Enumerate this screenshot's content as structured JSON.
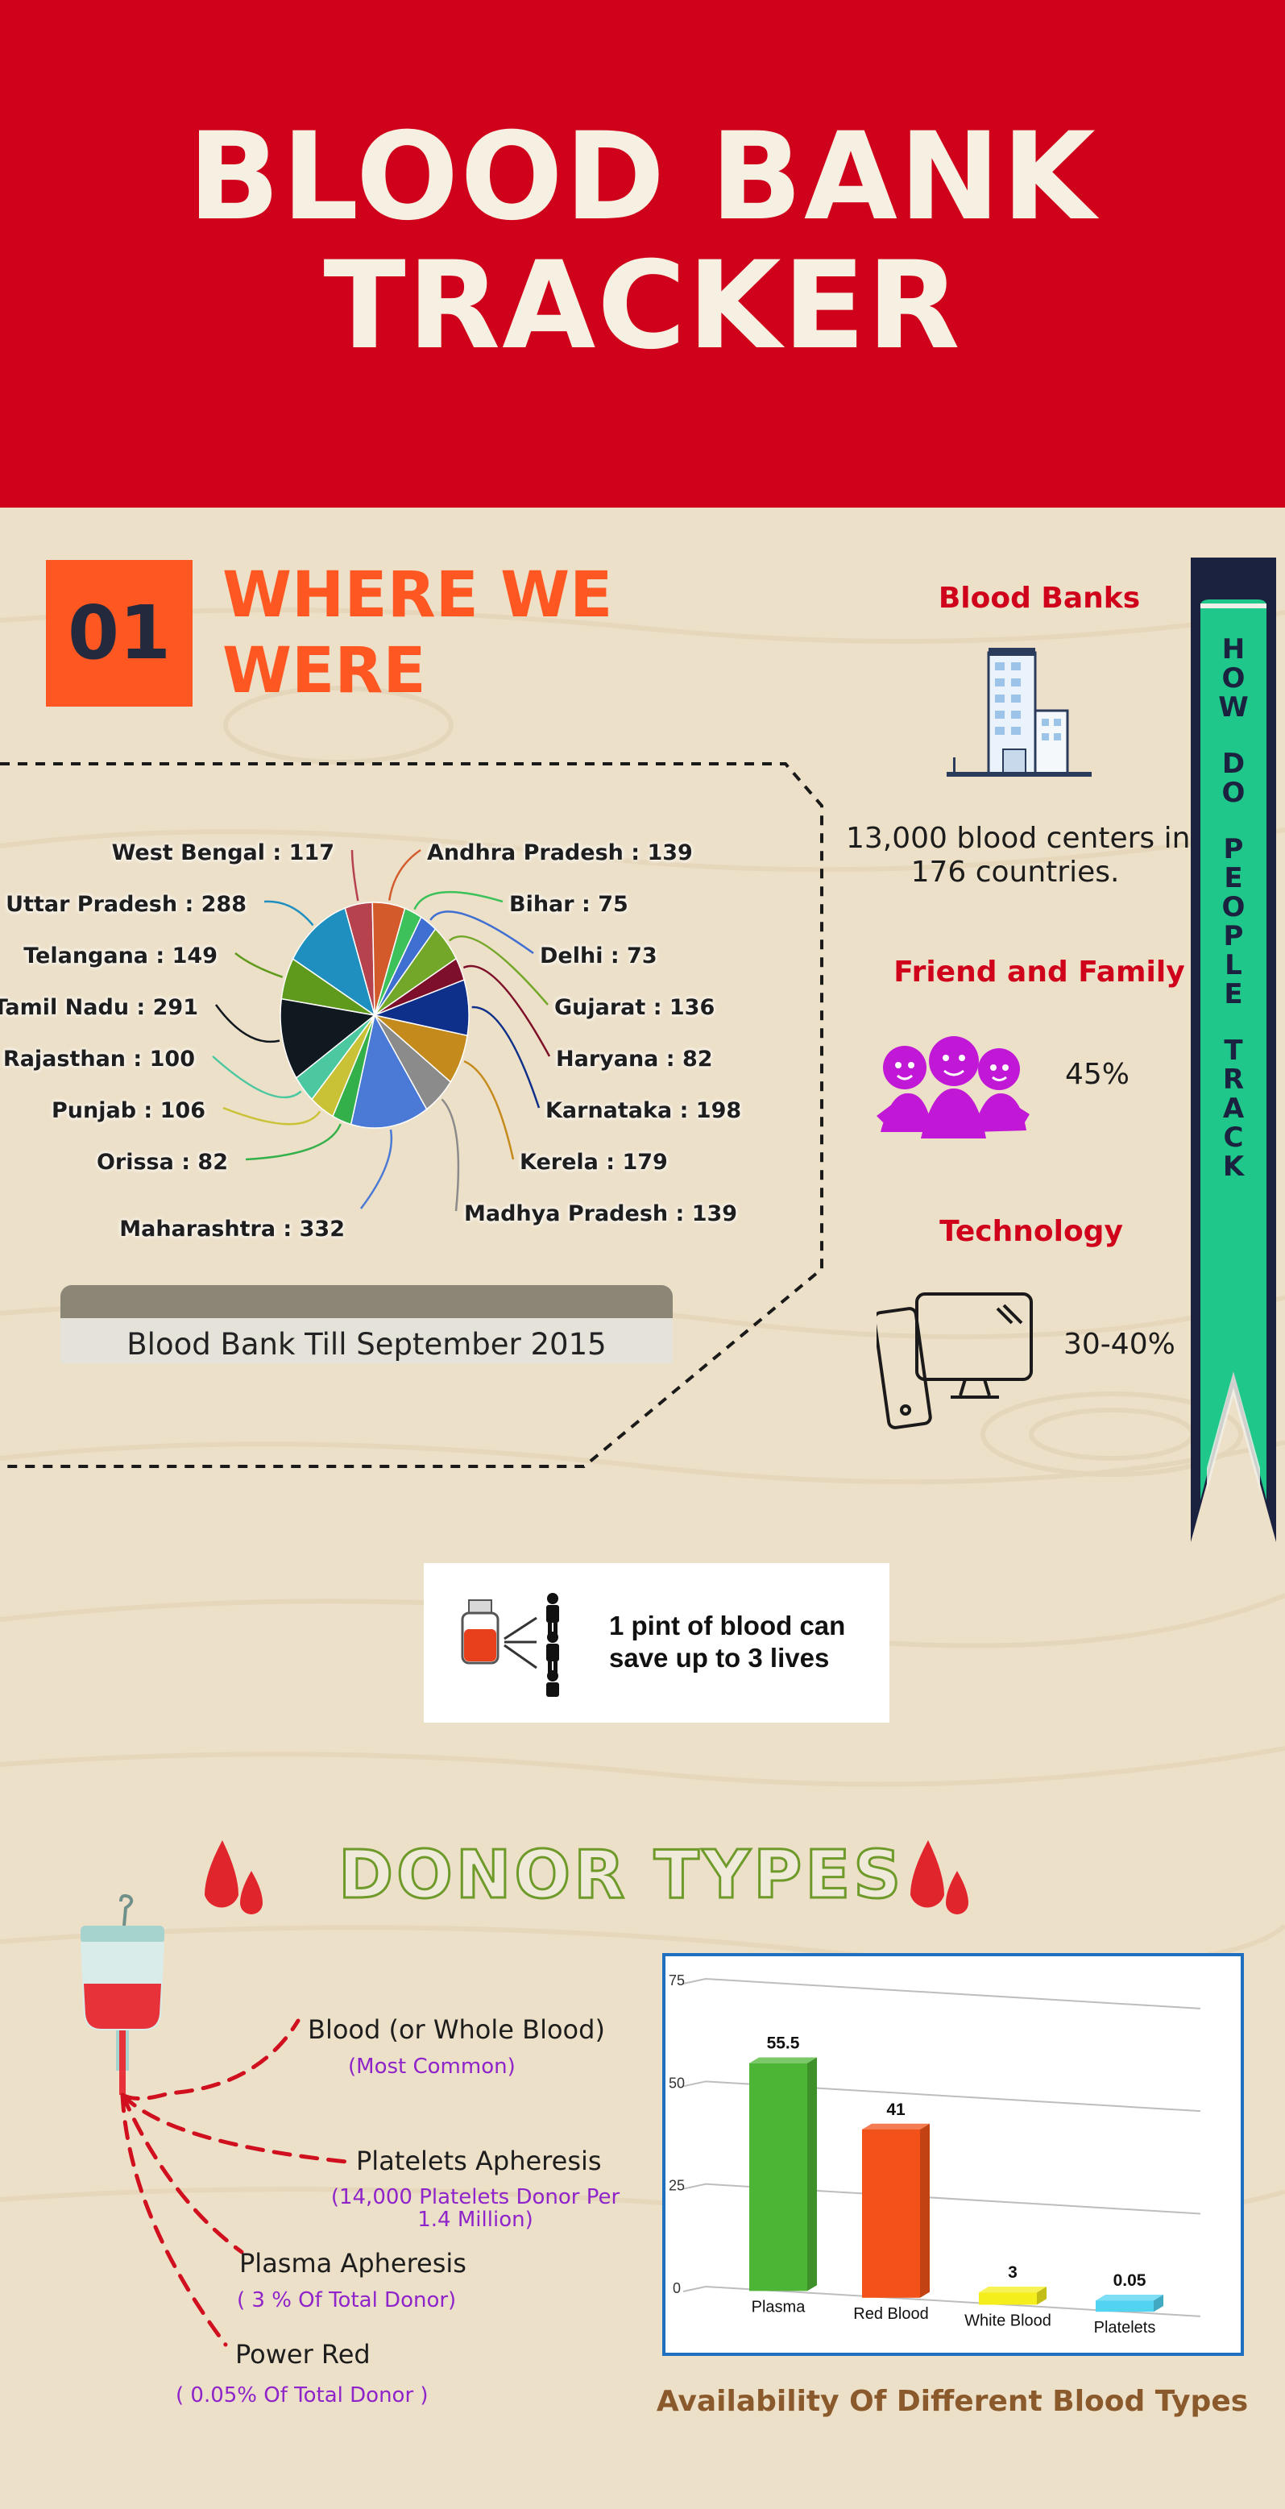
{
  "header": {
    "title_line1": "BLOOD BANK",
    "title_line2": "TRACKER"
  },
  "section1": {
    "number": "01",
    "title_line1": "WHERE WE",
    "title_line2": "WERE"
  },
  "pie_caption": "Blood Bank Till September 2015",
  "side": {
    "ribbon_words": [
      "HOW",
      "DO",
      "PEOPLE",
      "TRACK"
    ],
    "blood_banks": {
      "heading": "Blood Banks",
      "line1": "13,000  blood centers in",
      "line2": "176 countries."
    },
    "friends": {
      "heading": "Friend and Family",
      "value": "45%"
    },
    "technology": {
      "heading": "Technology",
      "value": "30-40%"
    }
  },
  "pint": {
    "line1": "1 pint of blood can",
    "line2": "save up to 3 lives"
  },
  "donor": {
    "title": "DONOR TYPES",
    "types": [
      {
        "name": "Blood (or Whole Blood)",
        "note": "(Most Common)"
      },
      {
        "name": "Platelets Apheresis",
        "note_line1": "(14,000 Platelets Donor Per",
        "note_line2": "1.4 Million)"
      },
      {
        "name": "Plasma Apheresis",
        "note": "( 3 % Of Total Donor)"
      },
      {
        "name": "Power Red",
        "note": "( 0.05% Of Total Donor )"
      }
    ]
  },
  "colors": {
    "header_red": "#d0021b",
    "accent_orange": "#ff5722",
    "ribbon_green": "#1fc88a",
    "ribbon_navy": "#1b2240",
    "note_purple": "#8e24c9",
    "chart_border": "#1e6fc0"
  },
  "chart_data": [
    {
      "type": "pie",
      "title": "Blood Bank Till September 2015",
      "slices": [
        {
          "label": "West Bengal : 117",
          "value": 117,
          "color": "#b5424d"
        },
        {
          "label": "Andhra Pradesh : 139",
          "value": 139,
          "color": "#d35a2b"
        },
        {
          "label": "Bihar : 75",
          "value": 75,
          "color": "#3cc15b"
        },
        {
          "label": "Delhi : 73",
          "value": 73,
          "color": "#3f6fd0"
        },
        {
          "label": "Gujarat : 136",
          "value": 136,
          "color": "#73a72a"
        },
        {
          "label": "Haryana : 82",
          "value": 82,
          "color": "#7e0f2a"
        },
        {
          "label": "Karnataka : 198",
          "value": 198,
          "color": "#0e2f8a"
        },
        {
          "label": "Kerela : 179",
          "value": 179,
          "color": "#c48a1c"
        },
        {
          "label": "Madhya Pradesh : 139",
          "value": 139,
          "color": "#8b8b8b"
        },
        {
          "label": "Maharashtra : 332",
          "value": 332,
          "color": "#4a7ad6"
        },
        {
          "label": "Orissa : 82",
          "value": 82,
          "color": "#34b04a"
        },
        {
          "label": "Punjab : 106",
          "value": 106,
          "color": "#c9c236"
        },
        {
          "label": "Rajasthan : 100",
          "value": 100,
          "color": "#4cc8a0"
        },
        {
          "label": "Tamil Nadu : 291",
          "value": 291,
          "color": "#101820"
        },
        {
          "label": "Telangana : 149",
          "value": 149,
          "color": "#5f9a1d"
        },
        {
          "label": "Uttar Pradesh : 288",
          "value": 288,
          "color": "#1f8fbf"
        }
      ]
    },
    {
      "type": "bar",
      "title": "Availability Of Different Blood Types",
      "ylabel": "%",
      "ylim": [
        0,
        75
      ],
      "yticks": [
        0,
        25,
        50,
        75
      ],
      "categories": [
        "Plasma",
        "Red Blood",
        "White Blood",
        "Platelets"
      ],
      "values": [
        55.5,
        41,
        3,
        0.05
      ],
      "value_labels": [
        "55.5",
        "41",
        "3",
        "0.05"
      ],
      "colors": [
        "#4db535",
        "#f25219",
        "#f4ee1c",
        "#52d3f2"
      ]
    }
  ]
}
